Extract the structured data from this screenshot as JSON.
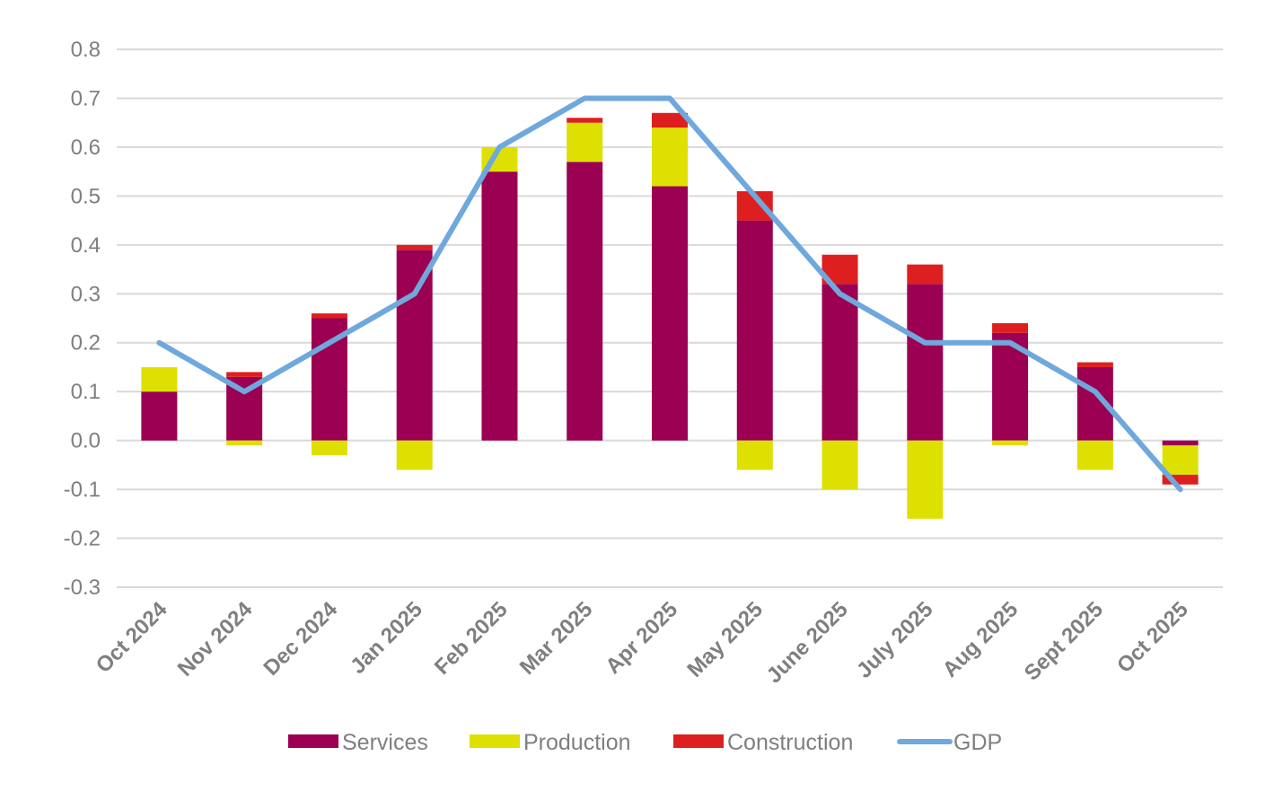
{
  "chart_data": {
    "type": "bar",
    "stacked": true,
    "title": "",
    "xlabel": "",
    "ylabel": "",
    "ylim": [
      -0.3,
      0.8
    ],
    "yticks": [
      "0.8",
      "0.7",
      "0.6",
      "0.5",
      "0.4",
      "0.3",
      "0.2",
      "0.1",
      "0.0",
      "-0.1",
      "-0.2",
      "-0.3"
    ],
    "grid": true,
    "legend": "bottom",
    "categories": [
      "Oct 2024",
      "Nov 2024",
      "Dec 2024",
      "Jan 2025",
      "Feb 2025",
      "Mar 2025",
      "Apr 2025",
      "May 2025",
      "June 2025",
      "July 2025",
      "Aug 2025",
      "Sept 2025",
      "Oct 2025"
    ],
    "series": [
      {
        "name": "Services",
        "kind": "bar",
        "color": "#9b0052",
        "values": [
          0.1,
          0.13,
          0.25,
          0.39,
          0.55,
          0.57,
          0.52,
          0.45,
          0.32,
          0.32,
          0.22,
          0.15,
          -0.01
        ]
      },
      {
        "name": "Production",
        "kind": "bar",
        "color": "#dde000",
        "values": [
          0.05,
          -0.01,
          -0.03,
          -0.06,
          0.05,
          0.08,
          0.12,
          -0.06,
          -0.1,
          -0.16,
          -0.01,
          -0.06,
          -0.06
        ]
      },
      {
        "name": "Construction",
        "kind": "bar",
        "color": "#de1f1f",
        "values": [
          0.0,
          0.01,
          0.01,
          0.01,
          0.0,
          0.01,
          0.03,
          0.06,
          0.06,
          0.04,
          0.02,
          0.01,
          -0.02
        ]
      },
      {
        "name": "GDP",
        "kind": "line",
        "color": "#6fa8dc",
        "values": [
          0.2,
          0.1,
          0.2,
          0.3,
          0.6,
          0.7,
          0.7,
          0.5,
          0.3,
          0.2,
          0.2,
          0.1,
          -0.1
        ]
      }
    ]
  }
}
